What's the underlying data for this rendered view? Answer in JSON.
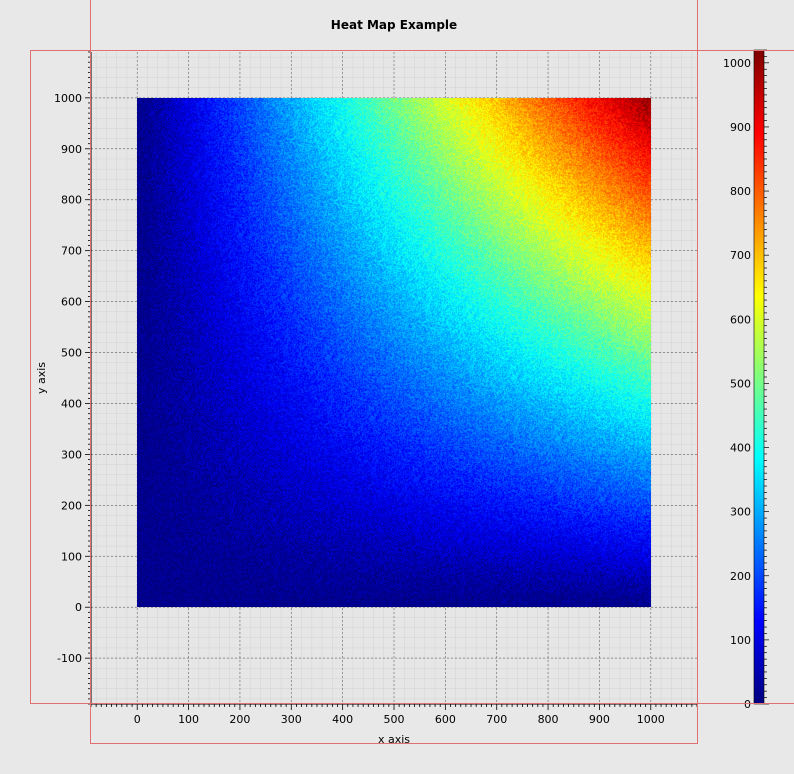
{
  "chart_data": {
    "type": "heatmap",
    "title": "Heat Map Example",
    "xlabel": "x axis",
    "ylabel": "y axis",
    "xlim": [
      -90,
      1090
    ],
    "ylim": [
      -190,
      1090
    ],
    "x_ticks": [
      0,
      100,
      200,
      300,
      400,
      500,
      600,
      700,
      800,
      900,
      1000
    ],
    "y_ticks": [
      -100,
      0,
      100,
      200,
      300,
      400,
      500,
      600,
      700,
      800,
      900,
      1000
    ],
    "data_extent": {
      "x": [
        0,
        1000
      ],
      "y": [
        0,
        1000
      ]
    },
    "z_function": "z ≈ x·y / 1000 (plus noise)",
    "colorbar": {
      "range": [
        0,
        1020
      ],
      "ticks": [
        0,
        100,
        200,
        300,
        400,
        500,
        600,
        700,
        800,
        900,
        1000
      ],
      "colormap": "jet"
    },
    "grid": true,
    "colors": {
      "background": "#e8e8e8",
      "plot_bg": "#e6e6e6",
      "frame": "#e07070"
    }
  }
}
